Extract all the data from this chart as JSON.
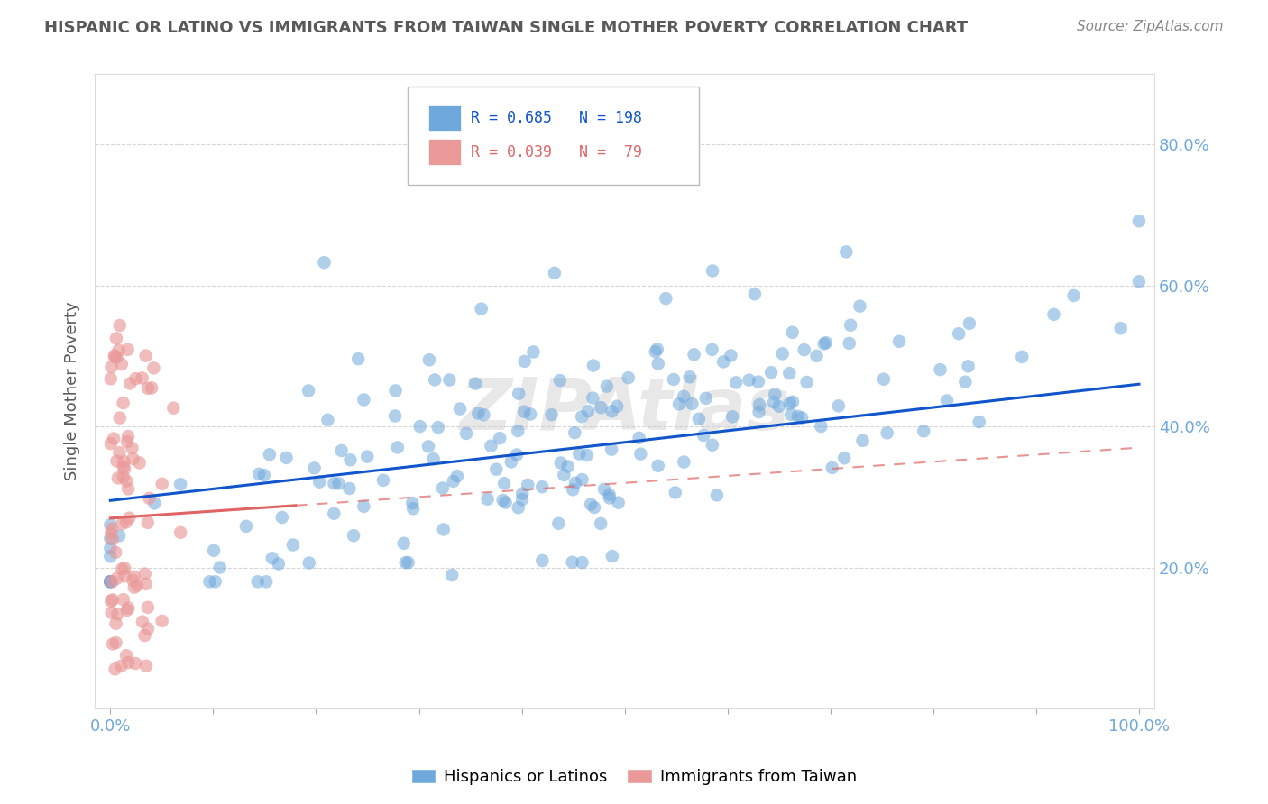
{
  "title": "HISPANIC OR LATINO VS IMMIGRANTS FROM TAIWAN SINGLE MOTHER POVERTY CORRELATION CHART",
  "source": "Source: ZipAtlas.com",
  "ylabel": "Single Mother Poverty",
  "blue_R": 0.685,
  "blue_N": 198,
  "pink_R": 0.039,
  "pink_N": 79,
  "blue_color": "#6fa8dc",
  "pink_color": "#ea9999",
  "blue_line_color": "#1155cc",
  "pink_line_color": "#e06666",
  "pink_dash_color": "#e06666",
  "watermark": "ZIPAtlas",
  "watermark_color": "#cccccc",
  "background_color": "#ffffff",
  "grid_color": "#cccccc",
  "title_color": "#595959",
  "axis_label_color": "#595959",
  "tick_color": "#6fa8dc",
  "seed": 42
}
